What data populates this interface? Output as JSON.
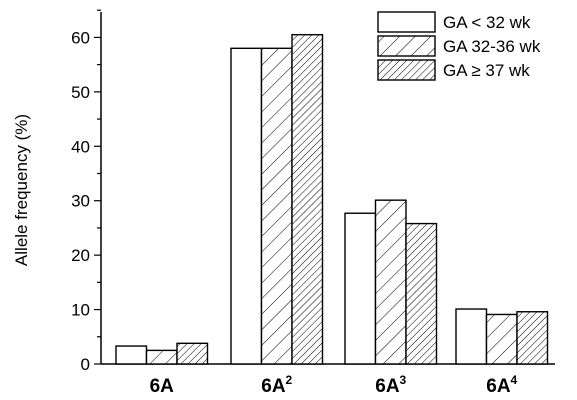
{
  "chart_data": {
    "type": "bar",
    "categories": [
      "6A",
      "6A",
      "6A",
      "6A"
    ],
    "category_superscripts": [
      "",
      "2",
      "3",
      "4"
    ],
    "series": [
      {
        "name": "GA < 32 wk",
        "values": [
          3.3,
          58.0,
          27.7,
          10.1
        ],
        "fill": "open"
      },
      {
        "name": "GA 32-36 wk",
        "values": [
          2.5,
          58.0,
          30.1,
          9.1
        ],
        "fill": "sparse-hatch"
      },
      {
        "name": "GA ≥ 37 wk",
        "values": [
          3.8,
          60.5,
          25.8,
          9.6
        ],
        "fill": "dense-hatch"
      }
    ],
    "ylabel": "Allele frequency (%)",
    "xlabel": "",
    "ylim": [
      0,
      65
    ],
    "yticks": [
      0,
      10,
      20,
      30,
      40,
      50,
      60
    ],
    "legend_position": "top-right",
    "grid": false,
    "colors": {
      "bar_stroke": "#000000",
      "bar_fill": "#ffffff",
      "hatch": "#000000"
    }
  }
}
